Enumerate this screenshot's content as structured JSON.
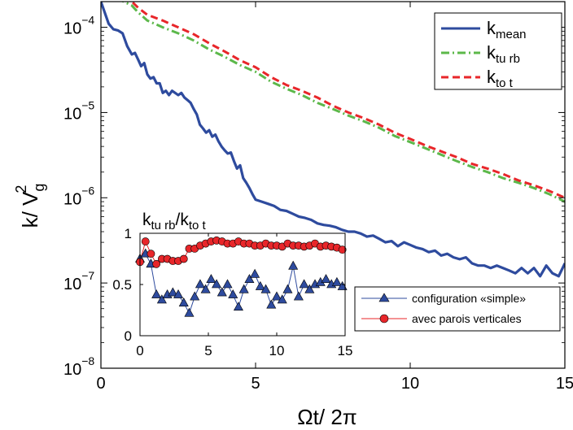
{
  "chart_data": [
    {
      "type": "line",
      "yscale": "log",
      "xlabel": "Ωt/ 2π",
      "ylabel_base": "k/ V",
      "ylabel_sub": "g",
      "ylabel_sup": "2",
      "xlim": [
        0,
        15
      ],
      "ylim": [
        1e-08,
        0.0002
      ],
      "xticks": [
        0,
        5,
        10,
        15
      ],
      "ytick_labels": [
        {
          "value": 1e-08,
          "base": "10",
          "exp": "−8"
        },
        {
          "value": 1e-07,
          "base": "10",
          "exp": "−7"
        },
        {
          "value": 1e-06,
          "base": "10",
          "exp": "−6"
        },
        {
          "value": 1e-05,
          "base": "10",
          "exp": "−5"
        },
        {
          "value": 0.0001,
          "base": "10",
          "exp": "−4"
        }
      ],
      "grid": false,
      "legend_position": "top-right",
      "series": [
        {
          "name_base": "k",
          "name_sub": "mean",
          "color": "#2e4b9e",
          "style": "solid",
          "x": [
            0.0,
            0.25,
            0.4,
            0.55,
            0.7,
            0.85,
            1.0,
            1.1,
            1.2,
            1.3,
            1.4,
            1.5,
            1.6,
            1.7,
            1.8,
            1.9,
            2.0,
            2.1,
            2.2,
            2.3,
            2.4,
            2.5,
            2.6,
            2.7,
            2.8,
            2.9,
            3.0,
            3.1,
            3.2,
            3.3,
            3.4,
            3.5,
            3.6,
            3.7,
            3.8,
            3.9,
            4.0,
            4.1,
            4.2,
            4.3,
            4.4,
            4.5,
            4.6,
            4.7,
            4.8,
            4.9,
            5.0,
            5.2,
            5.4,
            5.6,
            5.8,
            6.0,
            6.2,
            6.4,
            6.6,
            6.8,
            7.0,
            7.2,
            7.4,
            7.6,
            7.8,
            8.0,
            8.2,
            8.4,
            8.6,
            8.8,
            9.0,
            9.2,
            9.4,
            9.6,
            9.8,
            10.0,
            10.2,
            10.4,
            10.6,
            10.8,
            11.0,
            11.2,
            11.4,
            11.6,
            11.8,
            12.0,
            12.2,
            12.4,
            12.6,
            12.8,
            13.0,
            13.2,
            13.4,
            13.6,
            13.8,
            14.0,
            14.2,
            14.4,
            14.6,
            14.8,
            15.0
          ],
          "y": [
            0.0002,
            0.00011,
            9.5e-05,
            9.2e-05,
            8.5e-05,
            6e-05,
            4.8e-05,
            5e-05,
            4.2e-05,
            3.5e-05,
            3.8e-05,
            2.8e-05,
            2.5e-05,
            2.6e-05,
            2.2e-05,
            2.2e-05,
            1.7e-05,
            1.8e-05,
            1.6e-05,
            1.8e-05,
            1.7e-05,
            1.6e-05,
            1.7e-05,
            1.5e-05,
            1.4e-05,
            1.3e-05,
            1.1e-05,
            9.5e-06,
            7.2e-06,
            6.5e-06,
            5.8e-06,
            6.2e-06,
            5.2e-06,
            5.5e-06,
            4.6e-06,
            4e-06,
            3.6e-06,
            3.3e-06,
            3.4e-06,
            2.7e-06,
            2.2e-06,
            2.4e-06,
            1.7e-06,
            1.5e-06,
            1.3e-06,
            1.1e-06,
            9.5e-07,
            9e-07,
            8.5e-07,
            8e-07,
            7.2e-07,
            7e-07,
            6.5e-07,
            6e-07,
            5.8e-07,
            5.5e-07,
            5e-07,
            4.8e-07,
            4.7e-07,
            4.5e-07,
            4.2e-07,
            4e-07,
            4e-07,
            3.8e-07,
            3.5e-07,
            3.6e-07,
            3.3e-07,
            3e-07,
            3.1e-07,
            2.7e-07,
            3e-07,
            2.8e-07,
            2.6e-07,
            2.5e-07,
            2.3e-07,
            2.4e-07,
            2.1e-07,
            2.2e-07,
            2e-07,
            1.9e-07,
            2e-07,
            1.7e-07,
            1.6e-07,
            1.6e-07,
            1.5e-07,
            1.6e-07,
            1.5e-07,
            1.4e-07,
            1.3e-07,
            1.5e-07,
            1.3e-07,
            1.5e-07,
            1.2e-07,
            1.6e-07,
            1.3e-07,
            1.2e-07,
            1.7e-07
          ]
        },
        {
          "name_base": "k",
          "name_sub": "tu rb",
          "color": "#5cb84a",
          "style": "dashdot",
          "x": [
            0.0,
            0.5,
            1.0,
            1.2,
            1.5,
            2.0,
            2.5,
            3.0,
            3.5,
            4.0,
            4.5,
            5.0,
            5.5,
            6.0,
            6.5,
            7.0,
            7.5,
            8.0,
            8.5,
            9.0,
            9.5,
            10.0,
            10.5,
            11.0,
            11.5,
            12.0,
            12.5,
            13.0,
            13.5,
            14.0,
            14.5,
            15.0
          ],
          "y": [
            0.00025,
            0.00022,
            0.00018,
            0.00015,
            0.00012,
            0.0001,
            8.5e-05,
            7e-05,
            5.5e-05,
            4.5e-05,
            3.6e-05,
            3e-05,
            2.3e-05,
            1.9e-05,
            1.6e-05,
            1.3e-05,
            1.1e-05,
            9.2e-06,
            7.9e-06,
            6.6e-06,
            5.3e-06,
            4.5e-06,
            3.8e-06,
            3.2e-06,
            2.7e-06,
            2.3e-06,
            2e-06,
            1.7e-06,
            1.5e-06,
            1.3e-06,
            1.1e-06,
            9e-07
          ]
        },
        {
          "name_base": "k",
          "name_sub": "to t",
          "color": "#e8262a",
          "style": "dashed",
          "x": [
            0.0,
            0.5,
            1.0,
            1.2,
            1.5,
            2.0,
            2.5,
            3.0,
            3.5,
            4.0,
            4.5,
            5.0,
            5.5,
            6.0,
            6.5,
            7.0,
            7.5,
            8.0,
            8.5,
            9.0,
            9.5,
            10.0,
            10.5,
            11.0,
            11.5,
            12.0,
            12.5,
            13.0,
            13.5,
            14.0,
            14.5,
            15.0
          ],
          "y": [
            0.00027,
            0.00024,
            0.0002,
            0.00017,
            0.00014,
            0.00012,
            0.0001,
            8.3e-05,
            6.5e-05,
            5.2e-05,
            4.1e-05,
            3.4e-05,
            2.6e-05,
            2.1e-05,
            1.8e-05,
            1.5e-05,
            1.2e-05,
            1e-05,
            8.6e-06,
            7.2e-06,
            5.8e-06,
            4.9e-06,
            4.1e-06,
            3.5e-06,
            3e-06,
            2.5e-06,
            2.2e-06,
            1.9e-06,
            1.6e-06,
            1.4e-06,
            1.2e-06,
            1e-06
          ]
        }
      ]
    },
    {
      "type": "line",
      "title_parts": [
        {
          "t": "k",
          "sub": false
        },
        {
          "t": "tu rb",
          "sub": true
        },
        {
          "t": "/k",
          "sub": false
        },
        {
          "t": "to t",
          "sub": true
        }
      ],
      "xlim": [
        0,
        15
      ],
      "ylim": [
        0,
        1
      ],
      "xticks": [
        0,
        5,
        10,
        15
      ],
      "yticks": [
        0,
        0.5,
        1
      ],
      "ytick_labels": [
        "0",
        "0.5",
        "1"
      ],
      "legend_position": "bottom-right",
      "series": [
        {
          "name": "configuration «simple»",
          "color": "#2e4b9e",
          "marker": "triangle",
          "x": [
            0.0,
            0.4,
            0.8,
            1.2,
            1.6,
            2.0,
            2.4,
            2.8,
            3.2,
            3.6,
            4.0,
            4.4,
            4.8,
            5.2,
            5.6,
            6.0,
            6.4,
            6.8,
            7.2,
            7.6,
            8.0,
            8.4,
            8.8,
            9.2,
            9.6,
            10.0,
            10.4,
            10.8,
            11.2,
            11.6,
            12.0,
            12.4,
            12.8,
            13.2,
            13.6,
            14.0,
            14.4,
            14.8
          ],
          "y": [
            0.75,
            0.8,
            0.7,
            0.4,
            0.35,
            0.4,
            0.42,
            0.4,
            0.32,
            0.22,
            0.38,
            0.5,
            0.45,
            0.55,
            0.5,
            0.42,
            0.5,
            0.4,
            0.28,
            0.45,
            0.55,
            0.6,
            0.48,
            0.45,
            0.3,
            0.38,
            0.35,
            0.45,
            0.68,
            0.38,
            0.5,
            0.45,
            0.5,
            0.52,
            0.55,
            0.5,
            0.52,
            0.48
          ]
        },
        {
          "name": "avec parois verticales",
          "color": "#e8262a",
          "marker": "circle",
          "x": [
            0.0,
            0.4,
            0.8,
            1.2,
            1.6,
            2.0,
            2.4,
            2.8,
            3.2,
            3.6,
            4.0,
            4.4,
            4.8,
            5.2,
            5.6,
            6.0,
            6.4,
            6.8,
            7.2,
            7.6,
            8.0,
            8.4,
            8.8,
            9.2,
            9.6,
            10.0,
            10.4,
            10.8,
            11.2,
            11.6,
            12.0,
            12.4,
            12.8,
            13.2,
            13.6,
            14.0,
            14.4,
            14.8
          ],
          "y": [
            0.72,
            0.92,
            0.8,
            0.7,
            0.75,
            0.75,
            0.73,
            0.73,
            0.75,
            0.85,
            0.85,
            0.88,
            0.9,
            0.92,
            0.93,
            0.92,
            0.9,
            0.9,
            0.92,
            0.9,
            0.9,
            0.88,
            0.88,
            0.9,
            0.88,
            0.88,
            0.87,
            0.9,
            0.88,
            0.88,
            0.87,
            0.88,
            0.9,
            0.87,
            0.88,
            0.87,
            0.86,
            0.84
          ]
        }
      ]
    }
  ]
}
